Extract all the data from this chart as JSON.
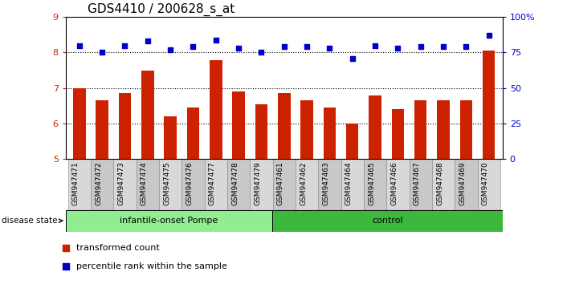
{
  "title": "GDS4410 / 200628_s_at",
  "samples": [
    "GSM947471",
    "GSM947472",
    "GSM947473",
    "GSM947474",
    "GSM947475",
    "GSM947476",
    "GSM947477",
    "GSM947478",
    "GSM947479",
    "GSM947461",
    "GSM947462",
    "GSM947463",
    "GSM947464",
    "GSM947465",
    "GSM947466",
    "GSM947467",
    "GSM947468",
    "GSM947469",
    "GSM947470"
  ],
  "red_values": [
    7.0,
    6.65,
    6.85,
    7.5,
    6.2,
    6.45,
    7.78,
    6.9,
    6.55,
    6.85,
    6.65,
    6.45,
    6.0,
    6.8,
    6.4,
    6.65,
    6.65,
    6.65,
    8.05
  ],
  "blue_values": [
    80,
    75,
    80,
    83,
    77,
    79,
    84,
    78,
    75,
    79,
    79,
    78,
    71,
    80,
    78,
    79,
    79,
    79,
    87
  ],
  "ylim_left": [
    5,
    9
  ],
  "ylim_right": [
    0,
    100
  ],
  "yticks_left": [
    5,
    6,
    7,
    8,
    9
  ],
  "yticks_right": [
    0,
    25,
    50,
    75,
    100
  ],
  "ytick_labels_right": [
    "0",
    "25",
    "50",
    "75",
    "100%"
  ],
  "group1_label": "infantile-onset Pompe",
  "group2_label": "control",
  "group1_color": "#90EE90",
  "group2_color": "#3CB93C",
  "group1_count": 9,
  "group2_count": 10,
  "disease_state_label": "disease state",
  "bar_color": "#CC2200",
  "dot_color": "#0000CC",
  "bar_bottom": 5,
  "legend_red": "transformed count",
  "legend_blue": "percentile rank within the sample",
  "tick_label_color_left": "#CC2200",
  "tick_label_color_right": "#0000CC",
  "title_fontsize": 11,
  "tick_fontsize": 8,
  "xlabel_fontsize": 6.5,
  "grid_color": "#000000",
  "box_color_odd": "#C8C8C8",
  "box_color_even": "#D8D8D8"
}
